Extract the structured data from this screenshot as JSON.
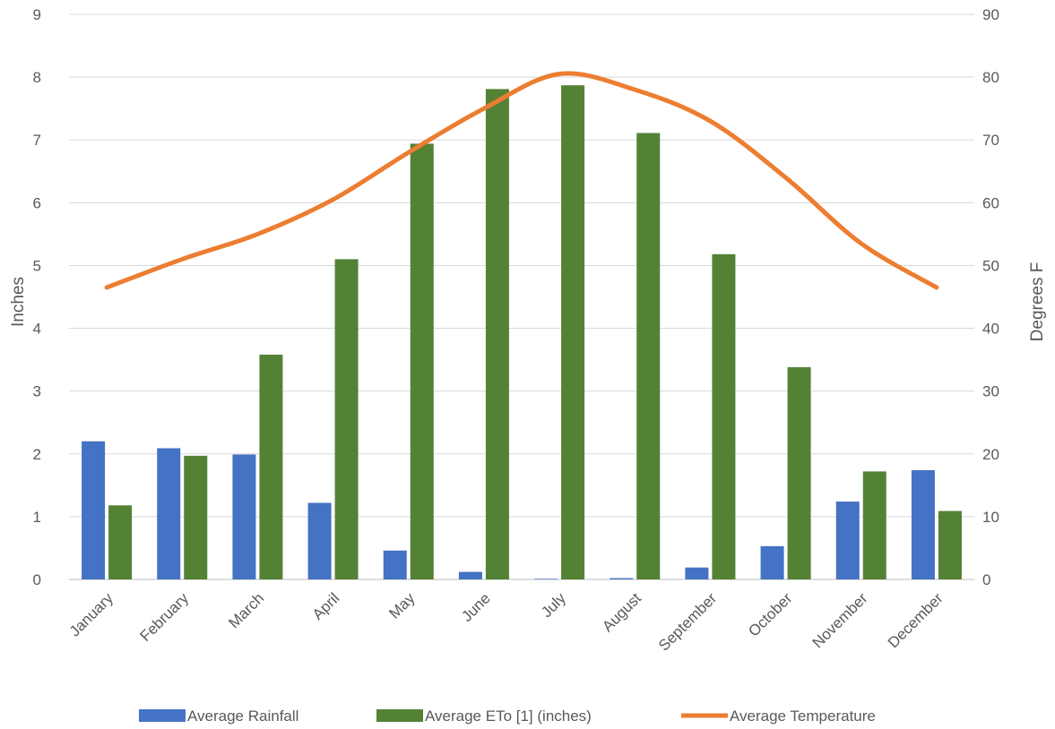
{
  "chart_data": {
    "type": "bar",
    "categories": [
      "January",
      "February",
      "March",
      "April",
      "May",
      "June",
      "July",
      "August",
      "September",
      "October",
      "November",
      "December"
    ],
    "series": [
      {
        "name": "Average Rainfall",
        "type": "bar",
        "axis": "left",
        "color": "#4472C4",
        "values": [
          2.2,
          2.09,
          1.99,
          1.22,
          0.46,
          0.12,
          0.01,
          0.02,
          0.19,
          0.53,
          1.24,
          1.74
        ]
      },
      {
        "name": "Average ETo [1] (inches)",
        "type": "bar",
        "axis": "left",
        "color": "#548235",
        "values": [
          1.18,
          1.97,
          3.58,
          5.1,
          6.94,
          7.81,
          7.87,
          7.11,
          5.18,
          3.38,
          1.72,
          1.09
        ]
      },
      {
        "name": "Average Temperature",
        "type": "line",
        "axis": "right",
        "smooth": true,
        "color": "#ED7D31",
        "values": [
          46.5,
          51,
          55,
          60.5,
          68,
          75,
          80.5,
          78,
          73,
          64,
          53.5,
          46.5
        ]
      }
    ],
    "ylabel": "Inches",
    "y2label": "Degrees F",
    "ylim": [
      0,
      9
    ],
    "y2lim": [
      0,
      90
    ],
    "yticks": [
      "0",
      "1",
      "2",
      "3",
      "4",
      "5",
      "6",
      "7",
      "8",
      "9"
    ],
    "y2ticks": [
      "0",
      "10",
      "20",
      "30",
      "40",
      "50",
      "60",
      "70",
      "80",
      "90"
    ],
    "grid": true,
    "legend_position": "bottom"
  }
}
